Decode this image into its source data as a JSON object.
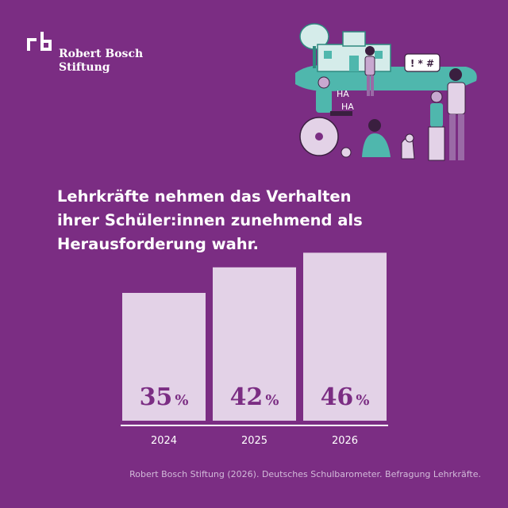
{
  "brand": {
    "name_line1": "Robert Bosch",
    "name_line2": "Stiftung",
    "logo_letters": "rb",
    "colors": {
      "background": "#7b2d83",
      "bar": "#e3d2e7",
      "value_text": "#7b2d83",
      "axis": "#ffffff"
    }
  },
  "illustration": {
    "speech_bubble": "! * #",
    "laugh_1": "HA",
    "laugh_2": "HA",
    "description_icon": "school-scene-illustration"
  },
  "headline": {
    "line1": "Lehrkräfte nehmen das Verhalten",
    "line2": "ihrer Schüler:innen zunehmend als",
    "line3": "Herausforderung wahr."
  },
  "chart_data": {
    "type": "bar",
    "categories": [
      "2024",
      "2025",
      "2026"
    ],
    "values": [
      35,
      42,
      46
    ],
    "value_suffix": "%",
    "title": "",
    "xlabel": "",
    "ylabel": "",
    "ylim": [
      0,
      50
    ],
    "grid": false,
    "legend": "none"
  },
  "source": "Robert Bosch Stiftung (2026). Deutsches Schulbarometer. Befragung Lehrkräfte."
}
